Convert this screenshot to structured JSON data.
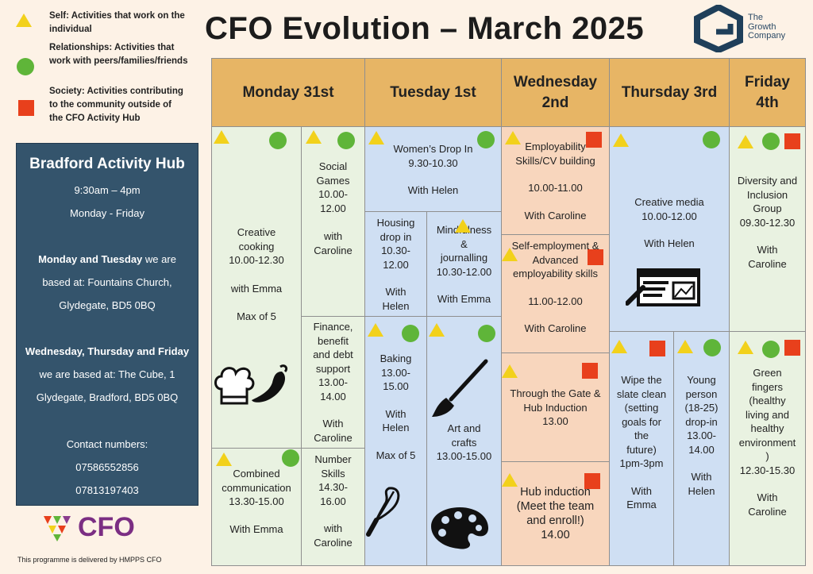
{
  "legend": {
    "self": "Self: Activities that work on the individual",
    "relationships": "Relationships: Activities that work with peers/families/friends",
    "society": "Society: Activities contributing to the community outside of the CFO Activity Hub"
  },
  "title": "CFO Evolution – March 2025",
  "company": {
    "line1": "The",
    "line2": "Growth",
    "line3": "Company"
  },
  "sidebar": {
    "heading": "Bradford Activity Hub",
    "hours": "9:30am – 4pm",
    "days": "Monday - Friday",
    "mt_bold": "Monday and Tuesday",
    "mt_rest": " we are",
    "mt_line2": "based at: Fountains Church,",
    "mt_line3": "Glydegate, BD5 0BQ",
    "wtf_bold": "Wednesday, Thursday and Friday",
    "wtf_line2": "we are based at: The Cube, 1",
    "wtf_line3": "Glydegate, Bradford, BD5 0BQ",
    "contact": "Contact numbers:",
    "phone1": "07586552856",
    "phone2": "07813197403"
  },
  "cfo_logo": "CFO",
  "footer": "This programme is delivered by HMPPS CFO",
  "days": [
    "Monday 31st",
    "Tuesday 1st",
    "Wednesday 2nd",
    "Thursday 3rd",
    "Friday 4th"
  ],
  "monday": {
    "creative": [
      "Creative",
      "cooking",
      "10.00-12.30",
      "",
      "with Emma",
      "",
      "Max of 5"
    ],
    "social": [
      "Social",
      "Games",
      "10.00-",
      "12.00",
      "",
      "with",
      "Caroline"
    ],
    "finance": [
      "Finance,",
      "benefit",
      "and debt",
      "support",
      "13.00-",
      "14.00",
      "",
      "With",
      "Caroline"
    ],
    "combined": [
      "Combined",
      "communication",
      "13.30-15.00",
      "",
      "With Emma"
    ],
    "number": [
      "Number",
      "Skills",
      "14.30-",
      "16.00",
      "",
      "with",
      "Caroline"
    ]
  },
  "tuesday": {
    "women": [
      "Women’s Drop In",
      "9.30-10.30",
      "",
      "With Helen"
    ],
    "housing": [
      "Housing",
      "drop in",
      "10.30-",
      "12.00",
      "",
      "With",
      "Helen"
    ],
    "mindfulness": [
      "Mindfulness",
      "&",
      "journalling",
      "10.30-12.00",
      "",
      "With Emma"
    ],
    "baking": [
      "Baking",
      "13.00-",
      "15.00",
      "",
      "With",
      "Helen",
      "",
      "Max of 5"
    ],
    "art": [
      "Art and",
      "crafts",
      "13.00-15.00"
    ]
  },
  "wednesday": {
    "employability": [
      "Employability",
      "Skills/CV building",
      "",
      "10.00-11.00",
      "",
      "With Caroline"
    ],
    "selfemp": [
      "Self-employment &",
      "Advanced",
      "employability skills",
      "",
      "11.00-12.00",
      "",
      "With Caroline"
    ],
    "gate": [
      "Through the Gate &",
      "Hub Induction",
      "13.00"
    ],
    "induction": [
      "Hub induction",
      "(Meet the team",
      "and enroll!)",
      "14.00"
    ]
  },
  "thursday": {
    "media": [
      "Creative media",
      "10.00-12.00",
      "",
      "With Helen"
    ],
    "wipe": [
      "Wipe the",
      "slate clean",
      "(setting",
      "goals for",
      "the",
      "future)",
      "1pm-3pm",
      "",
      "With",
      "Emma"
    ],
    "young": [
      "Young",
      "person",
      "(18-25)",
      "drop-in",
      "13.00-",
      "14.00",
      "",
      "With",
      "Helen"
    ]
  },
  "friday": {
    "diversity": [
      "Diversity and",
      "Inclusion",
      "Group",
      "09.30-12.30",
      "",
      "With",
      "Caroline"
    ],
    "green": [
      "Green",
      "fingers",
      "(healthy",
      "living and",
      "healthy",
      "environment",
      ")",
      "12.30-15.30",
      "",
      "With",
      "Caroline"
    ]
  },
  "colors": {
    "self": "#f2d11b",
    "relationships": "#5fb539",
    "society": "#e8401c",
    "header": "#e7b565",
    "sidebar": "#34546c"
  }
}
